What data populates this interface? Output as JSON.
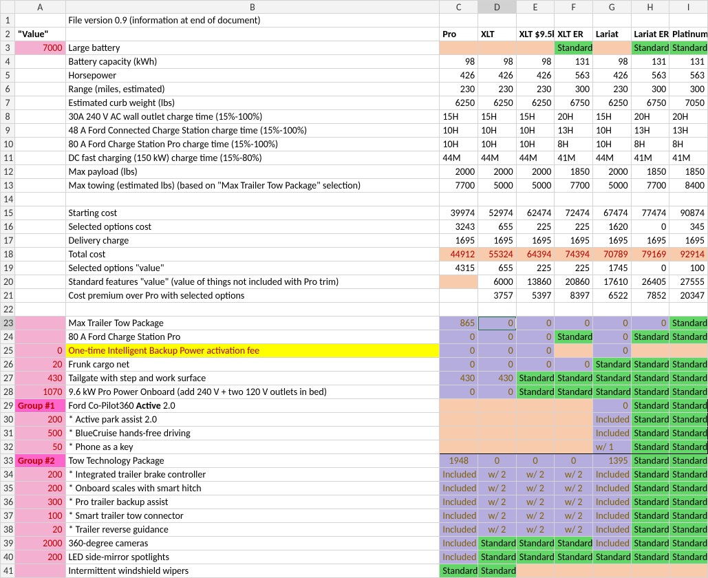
{
  "headers_col": [
    "",
    "A",
    "B",
    "C",
    "D",
    "E",
    "F",
    "G",
    "H",
    "I"
  ],
  "row2": {
    "A": "\"Value\"",
    "C": "Pro",
    "D": "XLT",
    "E": "XLT $9.5k",
    "F": "XLT ER",
    "G": "Lariat",
    "H": "Lariat ER",
    "I": "Platinum"
  },
  "r1B": "File version 0.9 (information at end of document)",
  "r3": {
    "A": "7000",
    "B": "Large battery",
    "F": "Standard",
    "H": "Standard",
    "I": "Standard"
  },
  "r4": {
    "B": "Battery capacity (kWh)",
    "C": "98",
    "D": "98",
    "E": "98",
    "F": "131",
    "G": "98",
    "H": "131",
    "I": "131"
  },
  "r5": {
    "B": "Horsepower",
    "C": "426",
    "D": "426",
    "E": "426",
    "F": "563",
    "G": "426",
    "H": "563",
    "I": "563"
  },
  "r6": {
    "B": "Range (miles, estimated)",
    "C": "230",
    "D": "230",
    "E": "230",
    "F": "300",
    "G": "230",
    "H": "300",
    "I": "300"
  },
  "r7": {
    "B": "Estimated curb weight (lbs)",
    "C": "6250",
    "D": "6250",
    "E": "6250",
    "F": "6750",
    "G": "6250",
    "H": "6750",
    "I": "7050"
  },
  "r8": {
    "B": "30A 240 V AC wall outlet charge time (15%-100%)",
    "C": "15H",
    "D": "15H",
    "E": "15H",
    "F": "20H",
    "G": "15H",
    "H": "20H",
    "I": "20H"
  },
  "r9": {
    "B": "48 A Ford Connected Charge Station charge time (15%-100%)",
    "C": "10H",
    "D": "10H",
    "E": "10H",
    "F": "13H",
    "G": "10H",
    "H": "13H",
    "I": "13H"
  },
  "r10": {
    "B": "80 A Ford Charge Station Pro charge time (15%-100%)",
    "C": "10H",
    "D": "10H",
    "E": "10H",
    "F": "8H",
    "G": "10H",
    "H": "8H",
    "I": "8H"
  },
  "r11": {
    "B": "DC fast charging (150 kW) charge time (15%-80%)",
    "C": "44M",
    "D": "44M",
    "E": "44M",
    "F": "41M",
    "G": "44M",
    "H": "41M",
    "I": "41M"
  },
  "r12": {
    "B": "Max payload (lbs)",
    "C": "2000",
    "D": "2000",
    "E": "2000",
    "F": "1850",
    "G": "2000",
    "H": "1850",
    "I": "1850"
  },
  "r13": {
    "B": "Max towing (estimated lbs) (based on \"Max Trailer Tow Package\" selection)",
    "C": "7700",
    "D": "5000",
    "E": "5000",
    "F": "7700",
    "G": "5000",
    "H": "7700",
    "I": "8400"
  },
  "r15": {
    "B": "Starting cost",
    "C": "39974",
    "D": "52974",
    "E": "62474",
    "F": "72474",
    "G": "67474",
    "H": "77474",
    "I": "90874"
  },
  "r16": {
    "B": "Selected options cost",
    "C": "3243",
    "D": "655",
    "E": "225",
    "F": "225",
    "G": "1620",
    "H": "0",
    "I": "345"
  },
  "r17": {
    "B": "Delivery charge",
    "C": "1695",
    "D": "1695",
    "E": "1695",
    "F": "1695",
    "G": "1695",
    "H": "1695",
    "I": "1695"
  },
  "r18": {
    "B": "Total cost",
    "C": "44912",
    "D": "55324",
    "E": "64394",
    "F": "74394",
    "G": "70789",
    "H": "79169",
    "I": "92914"
  },
  "r19": {
    "B": "Selected options \"value\"",
    "C": "4315",
    "D": "655",
    "E": "225",
    "F": "225",
    "G": "1745",
    "H": "0",
    "I": "100"
  },
  "r20": {
    "B": "Standard features \"value\" (value of things not included with Pro trim)",
    "D": "6000",
    "E": "13860",
    "F": "20860",
    "G": "17610",
    "H": "26405",
    "I": "27555"
  },
  "r21": {
    "B": "Cost premium over Pro with selected options",
    "D": "3757",
    "E": "5397",
    "F": "8397",
    "G": "6522",
    "H": "7852",
    "I": "20347"
  },
  "r23": {
    "B": "Max Trailer Tow Package",
    "C": "865",
    "D": "0",
    "E": "0",
    "F": "0",
    "G": "0",
    "H": "0",
    "I": "Standard"
  },
  "r24": {
    "B": "80 A Ford Charge Station Pro",
    "C": "0",
    "D": "0",
    "E": "0",
    "F": "Standard",
    "G": "0",
    "H": "Standard",
    "I": "Standard"
  },
  "r25": {
    "A": "0",
    "B": "One-time Intelligent Backup Power activation fee",
    "C": "0",
    "D": "0",
    "E": "0",
    "G": "0"
  },
  "r26": {
    "A": "20",
    "B": "Frunk cargo net",
    "C": "0",
    "D": "0",
    "E": "0",
    "F": "0",
    "G": "Standard",
    "H": "Standard",
    "I": "Standard"
  },
  "r27": {
    "A": "430",
    "B": "Tailgate with step and work surface",
    "C": "430",
    "D": "430",
    "E": "Standard",
    "F": "Standard",
    "G": "Standard",
    "H": "Standard",
    "I": "Standard"
  },
  "r28": {
    "A": "1070",
    "B": "9.6 kW Pro Power Onboard (add 240 V + two 120 V outlets in bed)",
    "C": "0",
    "D": "0",
    "E": "Standard",
    "F": "Standard",
    "G": "Standard",
    "H": "Standard",
    "I": "Standard"
  },
  "r29": {
    "A": "Group #1",
    "B": "Ford Co-Pilot360 Active 2.0",
    "G": "0",
    "H": "Standard",
    "I": "Standard"
  },
  "r30": {
    "A": "200",
    "B": "* Active park assist 2.0",
    "G": "Included",
    "H": "Standard",
    "I": "Standard"
  },
  "r31": {
    "A": "500",
    "B": "* BlueCruise hands-free driving",
    "G": "Included",
    "H": "Standard",
    "I": "Standard"
  },
  "r32": {
    "A": "50",
    "B": "* Phone as a key",
    "G": "w/ 1",
    "H": "Standard",
    "I": "Standard"
  },
  "r33": {
    "A": "Group #2",
    "B": "Tow Technology Package",
    "C": "1948",
    "D": "0",
    "E": "0",
    "F": "0",
    "G": "1395",
    "H": "Standard",
    "I": "Standard"
  },
  "r34": {
    "A": "200",
    "B": "* Integrated trailer brake controller",
    "C": "Included",
    "D": "w/ 2",
    "E": "w/ 2",
    "F": "w/ 2",
    "G": "Included",
    "H": "Standard",
    "I": "Standard"
  },
  "r35": {
    "A": "200",
    "B": "* Onboard scales with smart hitch",
    "C": "Included",
    "D": "w/ 2",
    "E": "w/ 2",
    "F": "w/ 2",
    "G": "Included",
    "H": "Standard",
    "I": "Standard"
  },
  "r36": {
    "A": "300",
    "B": "* Pro trailer backup assist",
    "C": "Included",
    "D": "w/ 2",
    "E": "w/ 2",
    "F": "w/ 2",
    "G": "Included",
    "H": "Standard",
    "I": "Standard"
  },
  "r37": {
    "A": "100",
    "B": "* Smart trailer tow connector",
    "C": "Included",
    "D": "w/ 2",
    "E": "w/ 2",
    "F": "w/ 2",
    "G": "Included",
    "H": "Standard",
    "I": "Standard"
  },
  "r38": {
    "A": "20",
    "B": "* Trailer reverse guidance",
    "C": "Included",
    "D": "w/ 2",
    "E": "w/ 2",
    "F": "w/ 2",
    "G": "Included",
    "H": "Standard",
    "I": "Standard"
  },
  "r39": {
    "A": "2000",
    "B": "360-degree cameras",
    "C": "Included",
    "D": "Standard",
    "E": "Standard",
    "F": "Standard",
    "G": "Included",
    "H": "Standard",
    "I": "Standard"
  },
  "r40": {
    "A": "200",
    "B": "LED side-mirror spotlights",
    "C": "Included",
    "D": "Standard",
    "E": "Standard",
    "F": "Standard",
    "G": "Standard",
    "H": "Standard",
    "I": "Standard"
  },
  "r41": {
    "B": "Intermittent windshield wipers",
    "C": "Standard",
    "D": "Standard"
  }
}
